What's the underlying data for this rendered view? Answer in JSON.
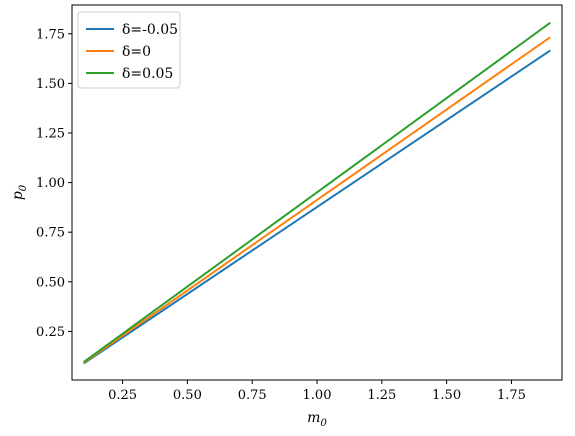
{
  "chart_data": {
    "type": "line",
    "title": "",
    "xlabel": "m",
    "xlabel_sub": "0",
    "ylabel": "p",
    "ylabel_sub": "0",
    "xlim": [
      0.055,
      1.945
    ],
    "ylim": [
      0.005,
      1.895
    ],
    "xticks": [
      0.25,
      0.5,
      0.75,
      1.0,
      1.25,
      1.5,
      1.75
    ],
    "xtick_labels": [
      "0.25",
      "0.50",
      "0.75",
      "1.00",
      "1.25",
      "1.50",
      "1.75"
    ],
    "yticks": [
      0.25,
      0.5,
      0.75,
      1.0,
      1.25,
      1.5,
      1.75
    ],
    "ytick_labels": [
      "0.25",
      "0.50",
      "0.75",
      "1.00",
      "1.25",
      "1.50",
      "1.75"
    ],
    "grid": false,
    "legend_position": "top-left",
    "series": [
      {
        "name": "δ=-0.05",
        "color": "#1f77b4",
        "x": [
          0.1,
          1.9
        ],
        "y": [
          0.0877,
          1.666
        ]
      },
      {
        "name": "δ=0",
        "color": "#ff7f0e",
        "x": [
          0.1,
          1.9
        ],
        "y": [
          0.0915,
          1.733
        ]
      },
      {
        "name": "δ=0.05",
        "color": "#2ca02c",
        "x": [
          0.1,
          1.9
        ],
        "y": [
          0.0955,
          1.806
        ]
      }
    ]
  }
}
